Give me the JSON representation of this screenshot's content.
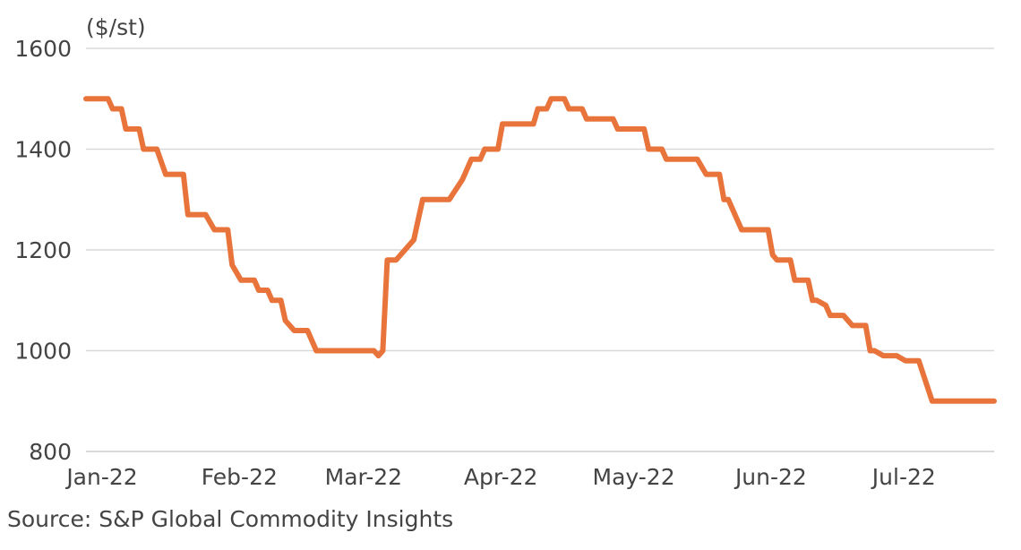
{
  "chart_data": {
    "type": "line",
    "ylabel": "($/st)",
    "ylim": [
      800,
      1600
    ],
    "yticks": [
      800,
      1000,
      1200,
      1400,
      1600
    ],
    "xlim": [
      "2022-01-01",
      "2022-07-25"
    ],
    "xticks": [
      {
        "label": "Jan-22",
        "date": "2022-01-01"
      },
      {
        "label": "Feb-22",
        "date": "2022-02-01"
      },
      {
        "label": "Mar-22",
        "date": "2022-03-01"
      },
      {
        "label": "Apr-22",
        "date": "2022-04-01"
      },
      {
        "label": "May-22",
        "date": "2022-05-01"
      },
      {
        "label": "Jun-22",
        "date": "2022-06-01"
      },
      {
        "label": "Jul-22",
        "date": "2022-07-01"
      }
    ],
    "grid": true,
    "line_color": "#E8743B",
    "series": [
      {
        "points": [
          [
            "2022-01-01",
            1500
          ],
          [
            "2022-01-06",
            1500
          ],
          [
            "2022-01-07",
            1480
          ],
          [
            "2022-01-09",
            1480
          ],
          [
            "2022-01-10",
            1440
          ],
          [
            "2022-01-13",
            1440
          ],
          [
            "2022-01-14",
            1400
          ],
          [
            "2022-01-17",
            1400
          ],
          [
            "2022-01-19",
            1350
          ],
          [
            "2022-01-23",
            1350
          ],
          [
            "2022-01-24",
            1270
          ],
          [
            "2022-01-28",
            1270
          ],
          [
            "2022-01-30",
            1240
          ],
          [
            "2022-02-02",
            1240
          ],
          [
            "2022-02-03",
            1170
          ],
          [
            "2022-02-05",
            1140
          ],
          [
            "2022-02-08",
            1140
          ],
          [
            "2022-02-09",
            1120
          ],
          [
            "2022-02-11",
            1120
          ],
          [
            "2022-02-12",
            1100
          ],
          [
            "2022-02-14",
            1100
          ],
          [
            "2022-02-15",
            1060
          ],
          [
            "2022-02-17",
            1040
          ],
          [
            "2022-02-20",
            1040
          ],
          [
            "2022-02-22",
            1000
          ],
          [
            "2022-03-07",
            1000
          ],
          [
            "2022-03-08",
            990
          ],
          [
            "2022-03-09",
            1000
          ],
          [
            "2022-03-10",
            1180
          ],
          [
            "2022-03-12",
            1180
          ],
          [
            "2022-03-16",
            1220
          ],
          [
            "2022-03-18",
            1300
          ],
          [
            "2022-03-24",
            1300
          ],
          [
            "2022-03-27",
            1340
          ],
          [
            "2022-03-29",
            1380
          ],
          [
            "2022-03-31",
            1380
          ],
          [
            "2022-04-01",
            1400
          ],
          [
            "2022-04-04",
            1400
          ],
          [
            "2022-04-05",
            1450
          ],
          [
            "2022-04-12",
            1450
          ],
          [
            "2022-04-13",
            1480
          ],
          [
            "2022-04-15",
            1480
          ],
          [
            "2022-04-16",
            1500
          ],
          [
            "2022-04-19",
            1500
          ],
          [
            "2022-04-20",
            1480
          ],
          [
            "2022-04-23",
            1480
          ],
          [
            "2022-04-24",
            1460
          ],
          [
            "2022-04-30",
            1460
          ],
          [
            "2022-05-01",
            1440
          ],
          [
            "2022-05-07",
            1440
          ],
          [
            "2022-05-08",
            1400
          ],
          [
            "2022-05-11",
            1400
          ],
          [
            "2022-05-12",
            1380
          ],
          [
            "2022-05-19",
            1380
          ],
          [
            "2022-05-21",
            1350
          ],
          [
            "2022-05-24",
            1350
          ],
          [
            "2022-05-25",
            1300
          ],
          [
            "2022-05-26",
            1300
          ],
          [
            "2022-05-28",
            1260
          ],
          [
            "2022-05-29",
            1240
          ],
          [
            "2022-06-04",
            1240
          ],
          [
            "2022-06-05",
            1190
          ],
          [
            "2022-06-06",
            1180
          ],
          [
            "2022-06-09",
            1180
          ],
          [
            "2022-06-10",
            1140
          ],
          [
            "2022-06-13",
            1140
          ],
          [
            "2022-06-14",
            1100
          ],
          [
            "2022-06-15",
            1100
          ],
          [
            "2022-06-17",
            1090
          ],
          [
            "2022-06-18",
            1070
          ],
          [
            "2022-06-21",
            1070
          ],
          [
            "2022-06-23",
            1050
          ],
          [
            "2022-06-26",
            1050
          ],
          [
            "2022-06-27",
            1000
          ],
          [
            "2022-06-28",
            1000
          ],
          [
            "2022-06-30",
            990
          ],
          [
            "2022-07-03",
            990
          ],
          [
            "2022-07-05",
            980
          ],
          [
            "2022-07-08",
            980
          ],
          [
            "2022-07-11",
            900
          ],
          [
            "2022-07-25",
            900
          ]
        ]
      }
    ]
  },
  "source": "Source: S&P Global Commodity Insights"
}
